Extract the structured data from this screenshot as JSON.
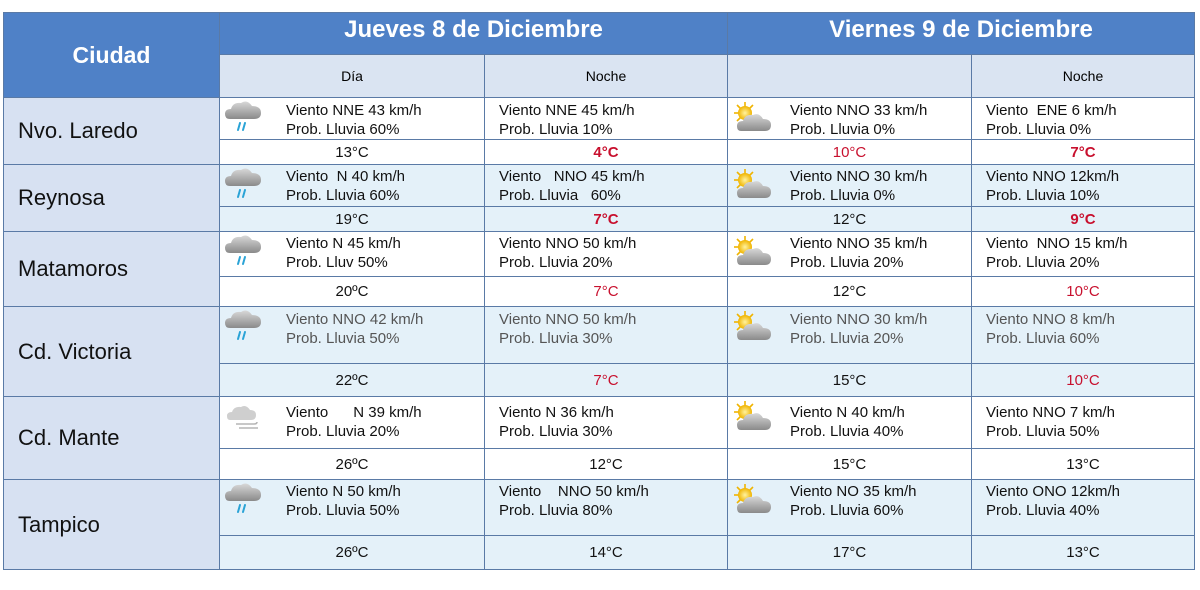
{
  "header": {
    "city_label": "Ciudad",
    "day1": "Jueves 8 de Diciembre",
    "day2": "Viernes 9 de Diciembre",
    "sub_dia": "Día",
    "sub_noche1": "Noche",
    "sub_blank": "",
    "sub_noche2": "Noche"
  },
  "colors": {
    "header_bg": "#4f81c7",
    "city_bg": "#d7e1f2",
    "alt_row": "#e4f1f9",
    "cold_temp": "#c8102e"
  },
  "rows": [
    {
      "city": "Nvo. Laredo",
      "c1": {
        "icon": "rain-cloud-icon",
        "l1": "Viento NNE 43 km/h",
        "l2": "Prob. Lluvia 60%",
        "temp": "13°C"
      },
      "c2": {
        "l1": "Viento NNE 45 km/h",
        "l2": "Prob. Lluvia 10%",
        "temp": "4°C"
      },
      "c3": {
        "icon": "sun-cloud-icon",
        "l1": "Viento NNO 33 km/h",
        "l2": "Prob. Lluvia 0%",
        "temp": "10°C"
      },
      "c4": {
        "l1": "Viento  ENE 6 km/h",
        "l2": "Prob. Lluvia 0%",
        "temp": "7°C"
      }
    },
    {
      "city": "Reynosa",
      "c1": {
        "icon": "rain-cloud-icon",
        "l1": "Viento  N 40 km/h",
        "l2": "Prob. Lluvia 60%",
        "temp": "19°C"
      },
      "c2": {
        "l1": "Viento   NNO 45 km/h",
        "l2": "Prob. Lluvia   60%",
        "temp": "7°C"
      },
      "c3": {
        "icon": "sun-cloud-icon",
        "l1": "Viento NNO 30 km/h",
        "l2": "Prob. Lluvia 0%",
        "temp": "12°C"
      },
      "c4": {
        "l1": "Viento NNO 12km/h",
        "l2": "Prob. Lluvia 10%",
        "temp": "9°C"
      }
    },
    {
      "city": "Matamoros",
      "c1": {
        "icon": "rain-cloud-icon",
        "l1": "Viento N 45 km/h",
        "l2": "Prob. Lluv 50%",
        "temp": "20ºC"
      },
      "c2": {
        "l1": "Viento NNO 50 km/h",
        "l2": "Prob. Lluvia 20%",
        "temp": "7°C"
      },
      "c3": {
        "icon": "sun-cloud-icon",
        "l1": "Viento NNO 35 km/h",
        "l2": "Prob. Lluvia 20%",
        "temp": "12°C"
      },
      "c4": {
        "l1": "Viento  NNO 15 km/h",
        "l2": "Prob. Lluvia 20%",
        "temp": "10°C"
      }
    },
    {
      "city": "Cd. Victoria",
      "c1": {
        "icon": "rain-cloud-icon",
        "l1": "Viento NNO 42 km/h",
        "l2": "Prob. Lluvia 50%",
        "temp": "22ºC"
      },
      "c2": {
        "l1": "Viento NNO 50 km/h",
        "l2": "Prob. Lluvia 30%",
        "temp": "7°C"
      },
      "c3": {
        "icon": "sun-cloud-icon",
        "l1": "Viento NNO 30 km/h",
        "l2": "Prob. Lluvia 20%",
        "temp": "15°C"
      },
      "c4": {
        "l1": "Viento NNO 8 km/h",
        "l2": "Prob. Lluvia 60%",
        "temp": "10°C"
      }
    },
    {
      "city": "Cd. Mante",
      "c1": {
        "icon": "wind-cloud-icon",
        "l1": "Viento      N 39 km/h",
        "l2": "Prob. Lluvia 20%",
        "temp": "26ºC"
      },
      "c2": {
        "l1": "Viento N 36 km/h",
        "l2": "Prob. Lluvia 30%",
        "temp": "12°C"
      },
      "c3": {
        "icon": "sun-cloud-icon",
        "l1": "Viento N 40 km/h",
        "l2": "Prob. Lluvia 40%",
        "temp": "15°C"
      },
      "c4": {
        "l1": "Viento NNO 7 km/h",
        "l2": "Prob. Lluvia 50%",
        "temp": "13°C"
      }
    },
    {
      "city": "Tampico",
      "c1": {
        "icon": "rain-cloud-icon",
        "l1": "Viento N 50 km/h",
        "l2": "Prob. Lluvia 50%",
        "temp": "26ºC"
      },
      "c2": {
        "l1": "Viento    NNO 50 km/h",
        "l2": "Prob. Lluvia 80%",
        "temp": "14°C"
      },
      "c3": {
        "icon": "sun-cloud-icon",
        "l1": "Viento NO 35 km/h",
        "l2": "Prob. Lluvia 60%",
        "temp": "17°C"
      },
      "c4": {
        "l1": "Viento ONO 12km/h",
        "l2": "Prob. Lluvia 40%",
        "temp": "13°C"
      }
    }
  ]
}
